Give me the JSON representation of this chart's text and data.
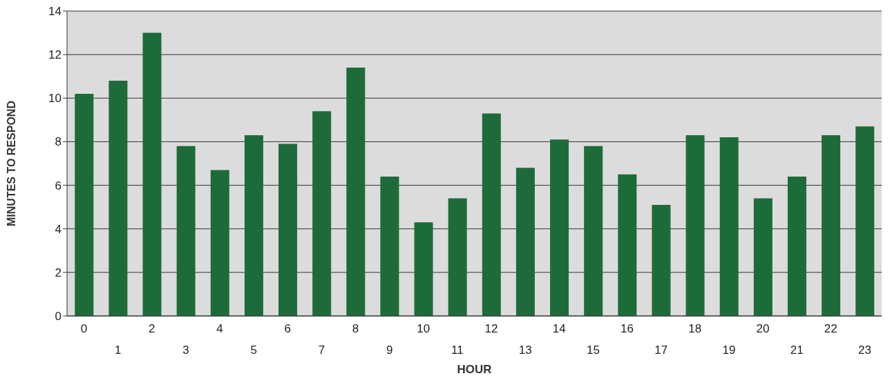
{
  "chart_data": {
    "type": "bar",
    "xlabel": "HOUR",
    "ylabel": "MINUTES TO RESPOND",
    "categories": [
      "0",
      "1",
      "2",
      "3",
      "4",
      "5",
      "6",
      "7",
      "8",
      "9",
      "10",
      "11",
      "12",
      "13",
      "14",
      "15",
      "16",
      "17",
      "18",
      "19",
      "20",
      "21",
      "22",
      "23"
    ],
    "values": [
      10.2,
      10.8,
      13.0,
      7.8,
      6.7,
      8.3,
      7.9,
      9.4,
      11.4,
      6.4,
      4.3,
      5.4,
      9.3,
      6.8,
      8.1,
      7.8,
      6.5,
      5.1,
      8.3,
      8.2,
      5.4,
      6.4,
      8.3,
      8.7
    ],
    "color": "#1e6b3a",
    "ylim": [
      0,
      14
    ],
    "yticks": [
      0,
      2,
      4,
      6,
      8,
      10,
      12,
      14
    ],
    "grid": "y"
  }
}
